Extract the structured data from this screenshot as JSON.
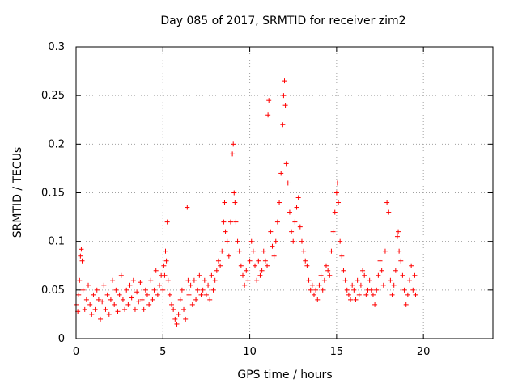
{
  "chart_data": {
    "type": "scatter",
    "title": "Day 085 of 2017, SRMTID for receiver zim2",
    "xlabel": "GPS time / hours",
    "ylabel": "SRMTID / TECUs",
    "xlim": [
      0,
      24
    ],
    "ylim": [
      0,
      0.3
    ],
    "xticks": [
      0,
      5,
      10,
      15,
      20
    ],
    "yticks": [
      0,
      0.05,
      0.1,
      0.15,
      0.2,
      0.25,
      0.3
    ],
    "xtick_labels": [
      "0",
      "5",
      "10",
      "15",
      "20"
    ],
    "ytick_labels": [
      "0",
      "0.05",
      "0.1",
      "0.15",
      "0.2",
      "0.25",
      "0.3"
    ],
    "grid": true,
    "marker": "+",
    "color": "#ff0000",
    "series": [
      {
        "name": "SRMTID",
        "points": [
          [
            0.0,
            0.035
          ],
          [
            0.1,
            0.028
          ],
          [
            0.15,
            0.045
          ],
          [
            0.2,
            0.06
          ],
          [
            0.25,
            0.085
          ],
          [
            0.3,
            0.092
          ],
          [
            0.35,
            0.08
          ],
          [
            0.4,
            0.05
          ],
          [
            0.5,
            0.03
          ],
          [
            0.6,
            0.04
          ],
          [
            0.7,
            0.055
          ],
          [
            0.8,
            0.035
          ],
          [
            0.9,
            0.025
          ],
          [
            1.0,
            0.045
          ],
          [
            1.1,
            0.03
          ],
          [
            1.2,
            0.05
          ],
          [
            1.3,
            0.04
          ],
          [
            1.4,
            0.02
          ],
          [
            1.5,
            0.038
          ],
          [
            1.6,
            0.055
          ],
          [
            1.7,
            0.03
          ],
          [
            1.8,
            0.045
          ],
          [
            1.9,
            0.025
          ],
          [
            2.0,
            0.04
          ],
          [
            2.1,
            0.06
          ],
          [
            2.2,
            0.035
          ],
          [
            2.3,
            0.05
          ],
          [
            2.4,
            0.028
          ],
          [
            2.5,
            0.045
          ],
          [
            2.6,
            0.065
          ],
          [
            2.7,
            0.04
          ],
          [
            2.8,
            0.03
          ],
          [
            2.9,
            0.05
          ],
          [
            3.0,
            0.035
          ],
          [
            3.1,
            0.055
          ],
          [
            3.2,
            0.042
          ],
          [
            3.3,
            0.06
          ],
          [
            3.4,
            0.03
          ],
          [
            3.5,
            0.048
          ],
          [
            3.6,
            0.038
          ],
          [
            3.7,
            0.058
          ],
          [
            3.8,
            0.04
          ],
          [
            3.9,
            0.03
          ],
          [
            4.0,
            0.05
          ],
          [
            4.1,
            0.045
          ],
          [
            4.2,
            0.035
          ],
          [
            4.3,
            0.06
          ],
          [
            4.4,
            0.04
          ],
          [
            4.5,
            0.05
          ],
          [
            4.6,
            0.07
          ],
          [
            4.7,
            0.045
          ],
          [
            4.8,
            0.055
          ],
          [
            4.9,
            0.065
          ],
          [
            5.0,
            0.05
          ],
          [
            5.05,
            0.075
          ],
          [
            5.1,
            0.065
          ],
          [
            5.15,
            0.09
          ],
          [
            5.2,
            0.08
          ],
          [
            5.25,
            0.12
          ],
          [
            5.3,
            0.06
          ],
          [
            5.4,
            0.045
          ],
          [
            5.5,
            0.035
          ],
          [
            5.6,
            0.03
          ],
          [
            5.7,
            0.02
          ],
          [
            5.8,
            0.015
          ],
          [
            5.9,
            0.025
          ],
          [
            6.0,
            0.04
          ],
          [
            6.1,
            0.05
          ],
          [
            6.2,
            0.03
          ],
          [
            6.3,
            0.02
          ],
          [
            6.4,
            0.135
          ],
          [
            6.45,
            0.06
          ],
          [
            6.5,
            0.045
          ],
          [
            6.6,
            0.055
          ],
          [
            6.7,
            0.035
          ],
          [
            6.8,
            0.06
          ],
          [
            6.9,
            0.04
          ],
          [
            7.0,
            0.05
          ],
          [
            7.1,
            0.065
          ],
          [
            7.2,
            0.045
          ],
          [
            7.3,
            0.05
          ],
          [
            7.4,
            0.06
          ],
          [
            7.5,
            0.045
          ],
          [
            7.6,
            0.055
          ],
          [
            7.7,
            0.04
          ],
          [
            7.8,
            0.065
          ],
          [
            7.9,
            0.05
          ],
          [
            8.0,
            0.06
          ],
          [
            8.1,
            0.07
          ],
          [
            8.2,
            0.08
          ],
          [
            8.3,
            0.075
          ],
          [
            8.4,
            0.09
          ],
          [
            8.5,
            0.12
          ],
          [
            8.55,
            0.14
          ],
          [
            8.6,
            0.11
          ],
          [
            8.7,
            0.1
          ],
          [
            8.8,
            0.085
          ],
          [
            8.9,
            0.12
          ],
          [
            9.0,
            0.19
          ],
          [
            9.05,
            0.2
          ],
          [
            9.1,
            0.15
          ],
          [
            9.15,
            0.14
          ],
          [
            9.2,
            0.12
          ],
          [
            9.3,
            0.1
          ],
          [
            9.4,
            0.09
          ],
          [
            9.5,
            0.075
          ],
          [
            9.6,
            0.065
          ],
          [
            9.7,
            0.055
          ],
          [
            9.8,
            0.07
          ],
          [
            9.9,
            0.06
          ],
          [
            10.0,
            0.08
          ],
          [
            10.1,
            0.1
          ],
          [
            10.2,
            0.09
          ],
          [
            10.3,
            0.075
          ],
          [
            10.4,
            0.06
          ],
          [
            10.5,
            0.08
          ],
          [
            10.6,
            0.065
          ],
          [
            10.7,
            0.07
          ],
          [
            10.8,
            0.09
          ],
          [
            10.9,
            0.08
          ],
          [
            11.0,
            0.075
          ],
          [
            11.05,
            0.23
          ],
          [
            11.1,
            0.245
          ],
          [
            11.2,
            0.11
          ],
          [
            11.3,
            0.095
          ],
          [
            11.4,
            0.085
          ],
          [
            11.5,
            0.1
          ],
          [
            11.6,
            0.12
          ],
          [
            11.7,
            0.14
          ],
          [
            11.8,
            0.17
          ],
          [
            11.9,
            0.22
          ],
          [
            11.95,
            0.25
          ],
          [
            12.0,
            0.265
          ],
          [
            12.05,
            0.24
          ],
          [
            12.1,
            0.18
          ],
          [
            12.2,
            0.16
          ],
          [
            12.3,
            0.13
          ],
          [
            12.4,
            0.11
          ],
          [
            12.5,
            0.1
          ],
          [
            12.6,
            0.12
          ],
          [
            12.7,
            0.135
          ],
          [
            12.8,
            0.145
          ],
          [
            12.9,
            0.115
          ],
          [
            13.0,
            0.1
          ],
          [
            13.1,
            0.09
          ],
          [
            13.2,
            0.08
          ],
          [
            13.3,
            0.075
          ],
          [
            13.4,
            0.06
          ],
          [
            13.5,
            0.05
          ],
          [
            13.6,
            0.055
          ],
          [
            13.7,
            0.045
          ],
          [
            13.8,
            0.05
          ],
          [
            13.9,
            0.04
          ],
          [
            14.0,
            0.055
          ],
          [
            14.1,
            0.065
          ],
          [
            14.2,
            0.05
          ],
          [
            14.3,
            0.06
          ],
          [
            14.4,
            0.075
          ],
          [
            14.5,
            0.07
          ],
          [
            14.6,
            0.065
          ],
          [
            14.7,
            0.09
          ],
          [
            14.8,
            0.11
          ],
          [
            14.9,
            0.13
          ],
          [
            15.0,
            0.15
          ],
          [
            15.05,
            0.16
          ],
          [
            15.1,
            0.14
          ],
          [
            15.2,
            0.1
          ],
          [
            15.3,
            0.085
          ],
          [
            15.4,
            0.07
          ],
          [
            15.5,
            0.06
          ],
          [
            15.6,
            0.05
          ],
          [
            15.7,
            0.045
          ],
          [
            15.8,
            0.04
          ],
          [
            15.9,
            0.055
          ],
          [
            16.0,
            0.05
          ],
          [
            16.1,
            0.04
          ],
          [
            16.2,
            0.06
          ],
          [
            16.3,
            0.045
          ],
          [
            16.4,
            0.055
          ],
          [
            16.5,
            0.07
          ],
          [
            16.6,
            0.065
          ],
          [
            16.7,
            0.045
          ],
          [
            16.8,
            0.05
          ],
          [
            16.9,
            0.06
          ],
          [
            17.0,
            0.05
          ],
          [
            17.1,
            0.045
          ],
          [
            17.2,
            0.035
          ],
          [
            17.3,
            0.05
          ],
          [
            17.4,
            0.065
          ],
          [
            17.5,
            0.08
          ],
          [
            17.6,
            0.07
          ],
          [
            17.7,
            0.055
          ],
          [
            17.8,
            0.09
          ],
          [
            17.9,
            0.14
          ],
          [
            18.0,
            0.13
          ],
          [
            18.1,
            0.06
          ],
          [
            18.2,
            0.045
          ],
          [
            18.3,
            0.055
          ],
          [
            18.4,
            0.07
          ],
          [
            18.5,
            0.105
          ],
          [
            18.55,
            0.11
          ],
          [
            18.6,
            0.09
          ],
          [
            18.7,
            0.08
          ],
          [
            18.8,
            0.065
          ],
          [
            18.9,
            0.05
          ],
          [
            19.0,
            0.035
          ],
          [
            19.1,
            0.045
          ],
          [
            19.2,
            0.06
          ],
          [
            19.3,
            0.075
          ],
          [
            19.4,
            0.05
          ],
          [
            19.5,
            0.065
          ],
          [
            19.55,
            0.045
          ]
        ]
      }
    ]
  }
}
